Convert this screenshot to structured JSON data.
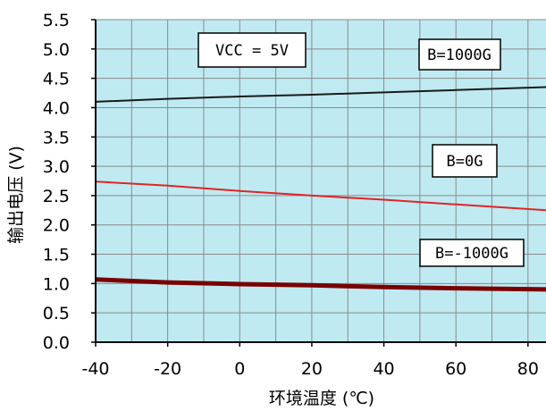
{
  "chart_data": {
    "type": "line",
    "title": "",
    "xlabel": "环境温度 (℃)",
    "ylabel": "输出电压 (V)",
    "xlim": [
      -40,
      85
    ],
    "ylim": [
      0,
      5.5
    ],
    "x_ticks": [
      "-40",
      "-20",
      "0",
      "20",
      "40",
      "60",
      "80"
    ],
    "y_ticks": [
      "0.0",
      "0.5",
      "1.0",
      "1.5",
      "2.0",
      "2.5",
      "3.0",
      "3.5",
      "4.0",
      "4.5",
      "5.0",
      "5.5"
    ],
    "grid": true,
    "colors": {
      "background": "#bfeaf2",
      "grid": "#8a8a8a"
    },
    "series": [
      {
        "name": "B=1000G",
        "color": "#1a1a1a",
        "x": [
          -40,
          -20,
          0,
          20,
          40,
          60,
          85
        ],
        "y": [
          4.1,
          4.15,
          4.19,
          4.22,
          4.26,
          4.3,
          4.35
        ]
      },
      {
        "name": "B=0G",
        "color": "#e02424",
        "x": [
          -40,
          -20,
          0,
          20,
          40,
          60,
          85
        ],
        "y": [
          2.74,
          2.67,
          2.58,
          2.5,
          2.43,
          2.35,
          2.25
        ]
      },
      {
        "name": "B=-1000G",
        "color": "#7a0000",
        "x": [
          -40,
          -20,
          0,
          20,
          40,
          60,
          85
        ],
        "y": [
          1.07,
          1.02,
          0.99,
          0.97,
          0.94,
          0.92,
          0.9
        ]
      }
    ],
    "annotations": [
      {
        "text": "VCC = 5V"
      },
      {
        "text": "B=1000G"
      },
      {
        "text": "B=0G"
      },
      {
        "text": "B=-1000G"
      }
    ]
  }
}
